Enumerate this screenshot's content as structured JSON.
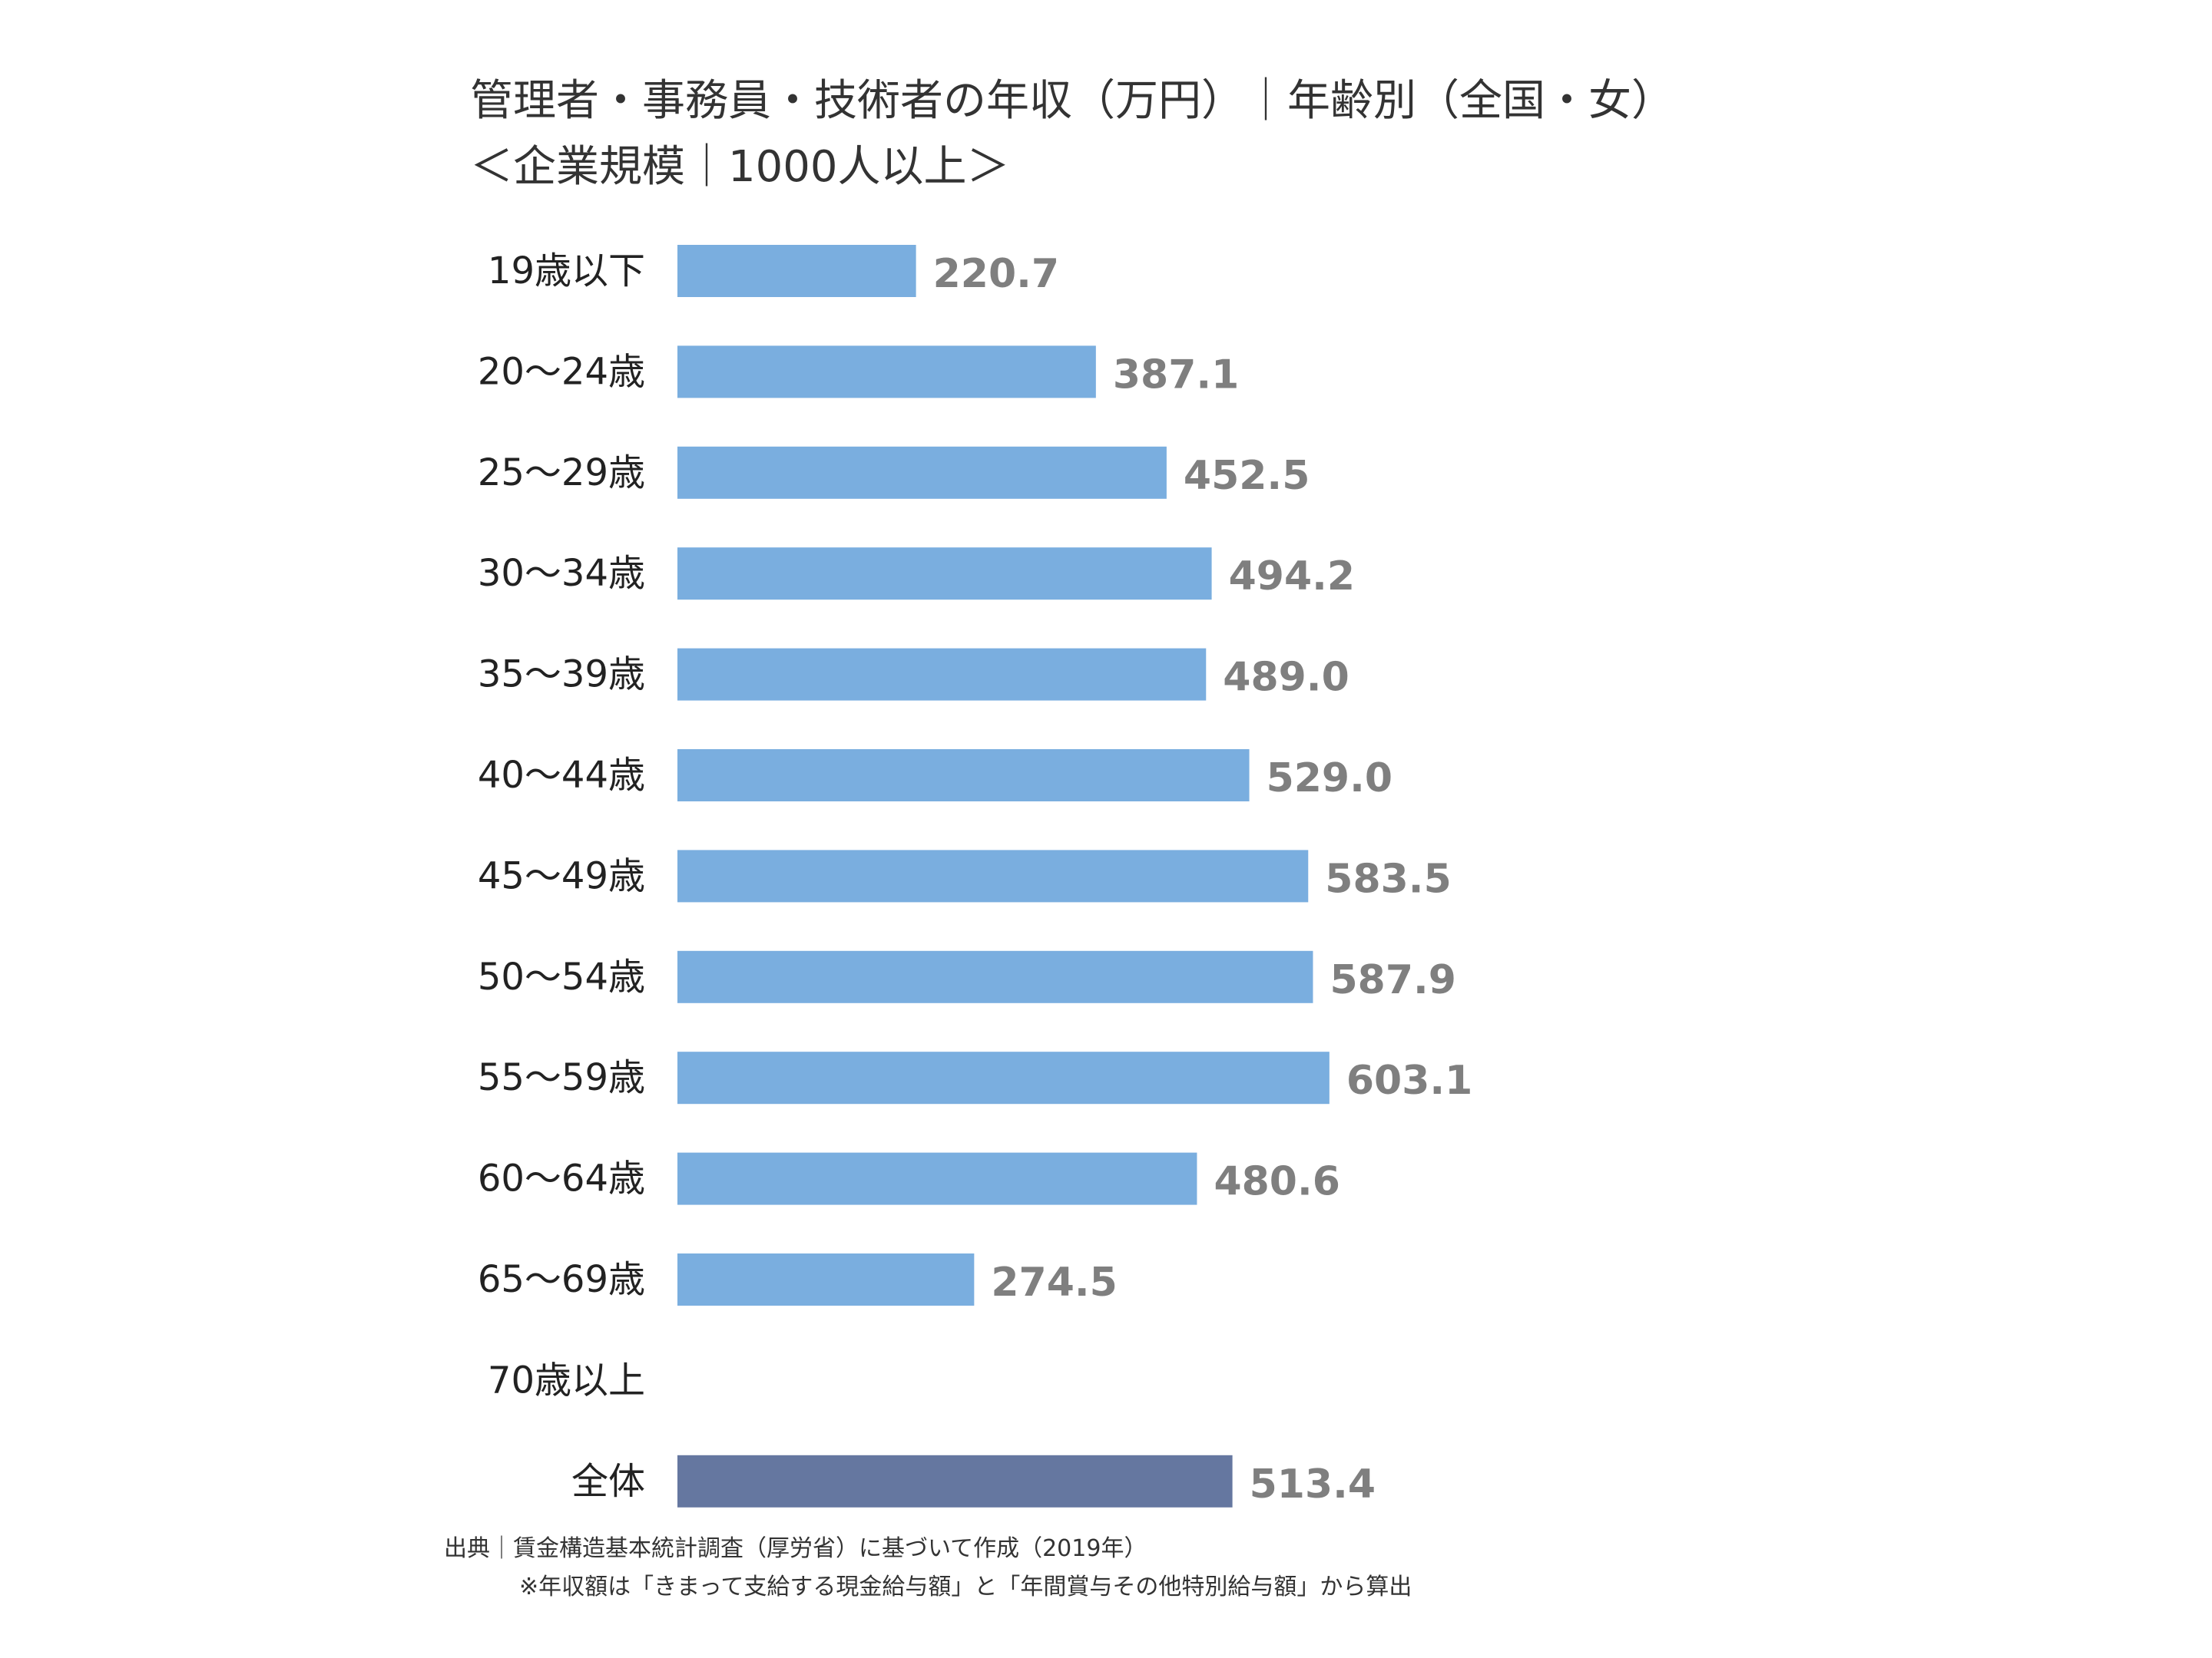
{
  "title_line1": "管理者・事務員・技術者の年収（万円）｜年齢別（全国・女）",
  "title_line2": "＜企業規模｜1000人以上＞",
  "source": "出典｜賃金構造基本統計調査（厚労省）に基づいて作成（2019年）",
  "note": "※年収額は「きまって支給する現金給与額」と「年間賞与その他特別給与額」から算出",
  "colors": {
    "bar": "#7aaedf",
    "total_bar": "#6577a0",
    "value_label": "#7f7f7f",
    "category_label": "#222222"
  },
  "chart_data": {
    "type": "bar",
    "orientation": "horizontal",
    "categories": [
      "19歳以下",
      "20～24歳",
      "25～29歳",
      "30～34歳",
      "35～39歳",
      "40～44歳",
      "45～49歳",
      "50～54歳",
      "55～59歳",
      "60～64歳",
      "65～69歳",
      "70歳以上",
      "全体"
    ],
    "values": [
      220.7,
      387.1,
      452.5,
      494.2,
      489.0,
      529.0,
      583.5,
      587.9,
      603.1,
      480.6,
      274.5,
      null,
      513.4
    ],
    "value_labels": [
      "220.7",
      "387.1",
      "452.5",
      "494.2",
      "489.0",
      "529.0",
      "583.5",
      "587.9",
      "603.1",
      "480.6",
      "274.5",
      "",
      "513.4"
    ],
    "highlight_category": "全体",
    "xlim": [
      0,
      700
    ],
    "grid": false,
    "legend": false
  }
}
